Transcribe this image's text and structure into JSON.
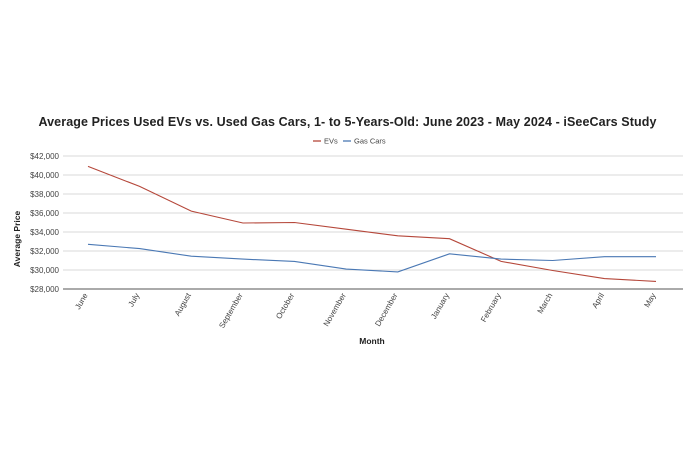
{
  "chart_data": {
    "type": "line",
    "title": "Average Prices Used EVs vs. Used Gas Cars, 1- to 5-Years-Old: June 2023 - May 2024 - iSeeCars Study",
    "xlabel": "Month",
    "ylabel": "Average Price",
    "categories": [
      "June",
      "July",
      "August",
      "September",
      "October",
      "November",
      "December",
      "January",
      "February",
      "March",
      "April",
      "May"
    ],
    "ylim": [
      28000,
      42000
    ],
    "yticks": [
      28000,
      30000,
      32000,
      34000,
      36000,
      38000,
      40000,
      42000
    ],
    "ytick_labels": [
      "$28,000",
      "$30,000",
      "$32,000",
      "$34,000",
      "$36,000",
      "$38,000",
      "$40,000",
      "$42,000"
    ],
    "grid": true,
    "legend_position": "top-center",
    "series": [
      {
        "name": "EVs",
        "color": "#b5473a",
        "values": [
          40900,
          38800,
          36200,
          34950,
          35000,
          34300,
          33600,
          33300,
          30900,
          29950,
          29100,
          28800
        ]
      },
      {
        "name": "Gas Cars",
        "color": "#4a78b4",
        "values": [
          32700,
          32250,
          31450,
          31150,
          30900,
          30100,
          29800,
          31700,
          31150,
          31000,
          31400,
          31400
        ]
      }
    ]
  }
}
